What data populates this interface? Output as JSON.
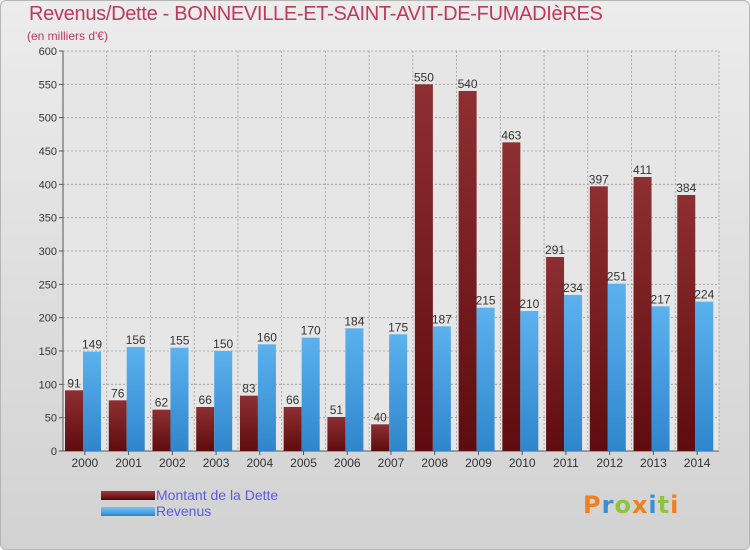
{
  "header": {
    "title": "Revenus/Dette - BONNEVILLE-ET-SAINT-AVIT-DE-FUMADIèRES",
    "subtitle": "(en milliers d'€)"
  },
  "chart_data": {
    "type": "bar",
    "categories": [
      "2000",
      "2001",
      "2002",
      "2003",
      "2004",
      "2005",
      "2006",
      "2007",
      "2008",
      "2009",
      "2010",
      "2011",
      "2012",
      "2013",
      "2014"
    ],
    "series": [
      {
        "name": "Montant de la Dette",
        "color": "#7a1c1f",
        "values": [
          91,
          76,
          62,
          66,
          83,
          66,
          51,
          40,
          550,
          540,
          463,
          291,
          397,
          411,
          384
        ]
      },
      {
        "name": "Revenus",
        "color": "#4aa3e6",
        "values": [
          149,
          156,
          155,
          150,
          160,
          170,
          184,
          175,
          187,
          215,
          210,
          234,
          251,
          217,
          224
        ]
      }
    ],
    "ylim": [
      0,
      600
    ],
    "yticks": [
      0,
      50,
      100,
      150,
      200,
      250,
      300,
      350,
      400,
      450,
      500,
      550,
      600
    ],
    "grid": true,
    "legend_position": "bottom-left",
    "data_labels": true
  },
  "legend": {
    "items": [
      {
        "label": "Montant de la Dette",
        "color": "#7a1c1f"
      },
      {
        "label": "Revenus",
        "color": "#4aa3e6"
      }
    ]
  },
  "brand": {
    "letters": [
      "P",
      "r",
      "o",
      "x",
      "i",
      "t",
      "i"
    ],
    "colors": [
      "#f07f1e",
      "#3a8fd6",
      "#8cc43c",
      "#f07f1e",
      "#3a8fd6",
      "#8cc43c",
      "#f07f1e"
    ]
  }
}
